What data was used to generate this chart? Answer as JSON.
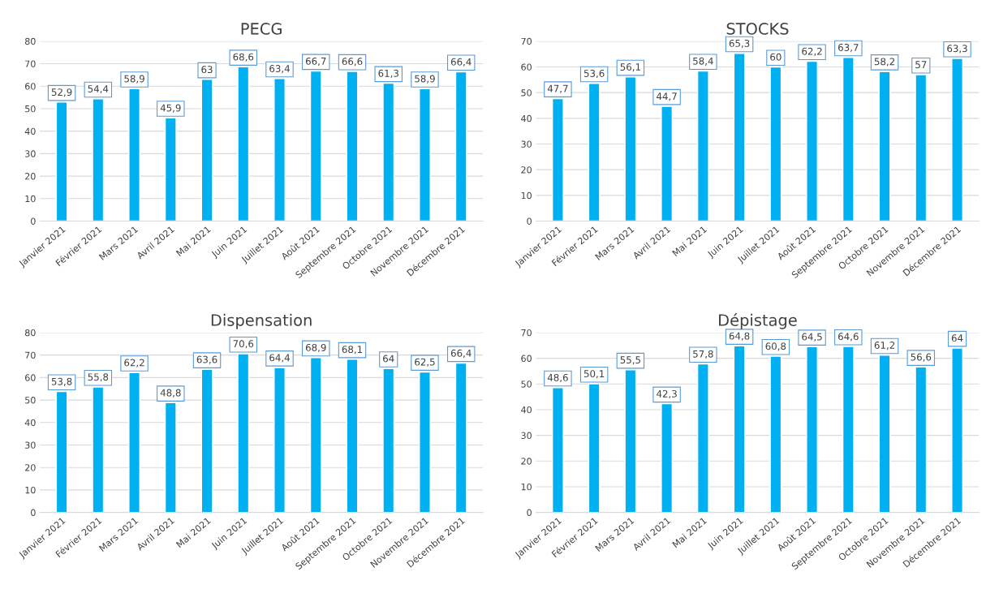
{
  "chart_data": [
    {
      "type": "bar",
      "title": "PECG",
      "categories": [
        "Janvier 2021",
        "Février 2021",
        "Mars 2021",
        "Avril 2021",
        "Mai 2021",
        "Juin 2021",
        "Juillet 2021",
        "Août 2021",
        "Septembre 2021",
        "Octobre 2021",
        "Novembre 2021",
        "Décembre 2021"
      ],
      "values": [
        52.9,
        54.4,
        58.9,
        45.9,
        63,
        68.6,
        63.4,
        66.7,
        66.6,
        61.3,
        58.9,
        66.4
      ],
      "value_labels": [
        "52,9",
        "54,4",
        "58,9",
        "45,9",
        "63",
        "68,6",
        "63,4",
        "66,7",
        "66,6",
        "61,3",
        "58,9",
        "66,4"
      ],
      "color": "#00b0f0",
      "ylim": [
        0,
        80
      ],
      "yticks": [
        0,
        10,
        20,
        30,
        40,
        50,
        60,
        70,
        80
      ],
      "grid": "y"
    },
    {
      "type": "bar",
      "title": "STOCKS",
      "categories": [
        "Janvier 2021",
        "Février 2021",
        "Mars 2021",
        "Avril 2021",
        "Mai 2021",
        "Juin 2021",
        "Juillet 2021",
        "Août 2021",
        "Septembre 2021",
        "Octobre 2021",
        "Novembre 2021",
        "Décembre 2021"
      ],
      "values": [
        47.7,
        53.6,
        56.1,
        44.7,
        58.4,
        65.3,
        60,
        62.2,
        63.7,
        58.2,
        57,
        63.3
      ],
      "value_labels": [
        "47,7",
        "53,6",
        "56,1",
        "44,7",
        "58,4",
        "65,3",
        "60",
        "62,2",
        "63,7",
        "58,2",
        "57",
        "63,3"
      ],
      "color": "#00b0f0",
      "ylim": [
        0,
        70
      ],
      "yticks": [
        0,
        10,
        20,
        30,
        40,
        50,
        60,
        70
      ],
      "grid": "y"
    },
    {
      "type": "bar",
      "title": "Dispensation",
      "categories": [
        "Janvier 2021",
        "Février 2021",
        "Mars 2021",
        "Avril 2021",
        "Mai 2021",
        "Juin 2021",
        "Juillet 2021",
        "Août 2021",
        "Septembre 2021",
        "Octobre 2021",
        "Novembre 2021",
        "Décembre 2021"
      ],
      "values": [
        53.8,
        55.8,
        62.2,
        48.8,
        63.6,
        70.6,
        64.4,
        68.9,
        68.1,
        64,
        62.5,
        66.4
      ],
      "value_labels": [
        "53,8",
        "55,8",
        "62,2",
        "48,8",
        "63,6",
        "70,6",
        "64,4",
        "68,9",
        "68,1",
        "64",
        "62,5",
        "66,4"
      ],
      "color": "#00b0f0",
      "ylim": [
        0,
        80
      ],
      "yticks": [
        0,
        10,
        20,
        30,
        40,
        50,
        60,
        70,
        80
      ],
      "grid": "y"
    },
    {
      "type": "bar",
      "title": "Dépistage",
      "categories": [
        "Janvier 2021",
        "Février 2021",
        "Mars 2021",
        "Avril 2021",
        "Mai 2021",
        "Juin 2021",
        "Juillet 2021",
        "Août 2021",
        "Septembre 2021",
        "Octobre 2021",
        "Novembre 2021",
        "Décembre 2021"
      ],
      "values": [
        48.6,
        50.1,
        55.5,
        42.3,
        57.8,
        64.8,
        60.8,
        64.5,
        64.6,
        61.2,
        56.6,
        64
      ],
      "value_labels": [
        "48,6",
        "50,1",
        "55,5",
        "42,3",
        "57,8",
        "64,8",
        "60,8",
        "64,5",
        "64,6",
        "61,2",
        "56,6",
        "64"
      ],
      "color": "#00b0f0",
      "ylim": [
        0,
        70
      ],
      "yticks": [
        0,
        10,
        20,
        30,
        40,
        50,
        60,
        70
      ],
      "grid": "y"
    }
  ]
}
